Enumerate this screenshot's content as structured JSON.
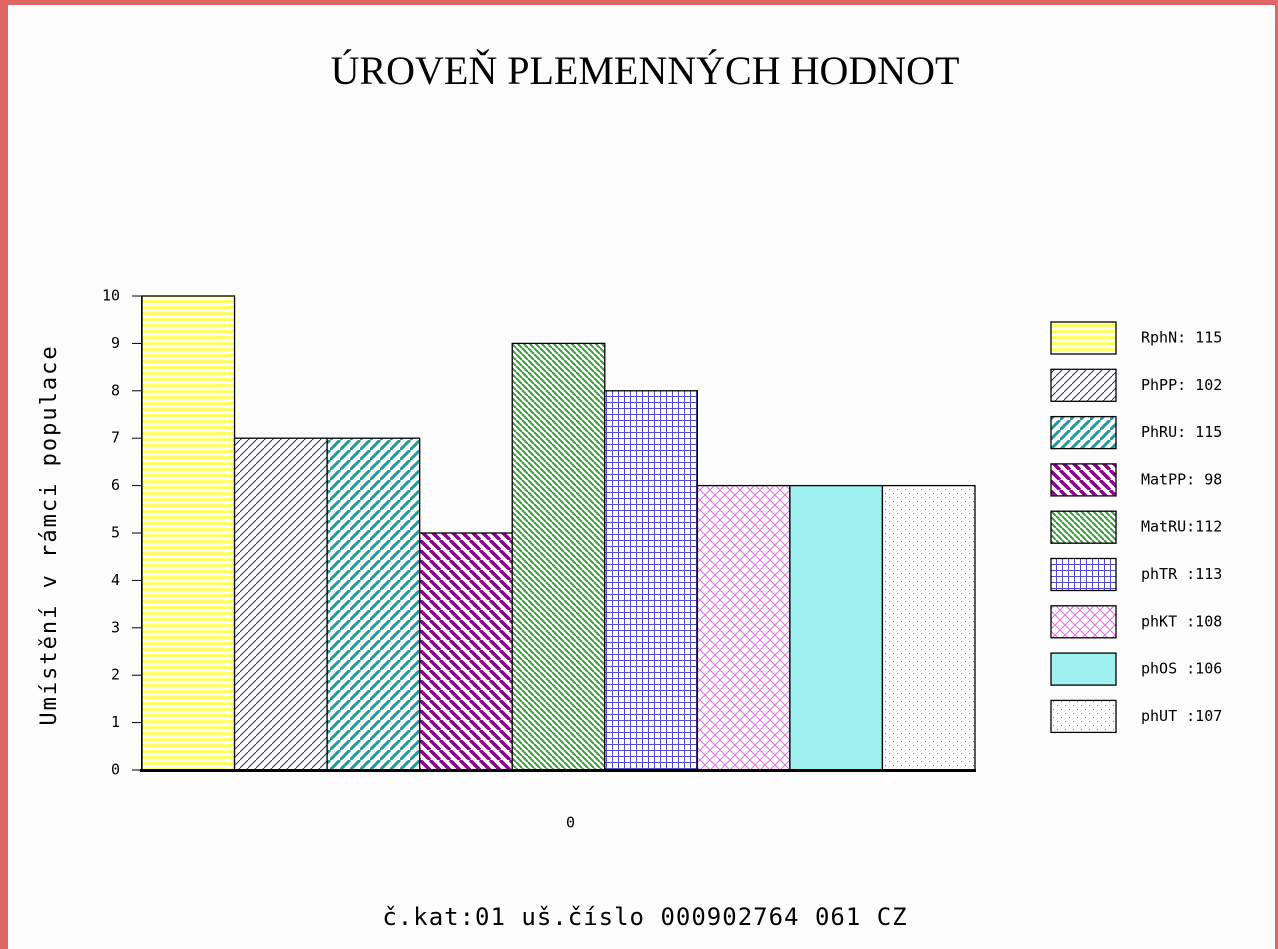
{
  "chart_data": {
    "type": "bar",
    "title": "ÚROVEŇ PLEMENNÝCH HODNOT",
    "y_label": "Umístění v rámci populace",
    "footer": "č.kat:01 uš.číslo 000902764 061 CZ",
    "categories": [
      "0"
    ],
    "ylim": [
      0,
      10
    ],
    "yticks": [
      0,
      1,
      2,
      3,
      4,
      5,
      6,
      7,
      8,
      9,
      10
    ],
    "series": [
      {
        "name": "RphN: 115",
        "color": "#ffff66",
        "pattern": "horizontal",
        "values": [
          10
        ]
      },
      {
        "name": "PhPP: 102",
        "color": "#303070",
        "pattern": "forward",
        "values": [
          7
        ]
      },
      {
        "name": "PhRU: 115",
        "color": "#209a9a",
        "pattern": "forward-thick",
        "values": [
          7
        ]
      },
      {
        "name": "MatPP: 98",
        "color": "#8a008a",
        "pattern": "backward-thick",
        "values": [
          5
        ]
      },
      {
        "name": "MatRU:112",
        "color": "#3a9a3a",
        "pattern": "backward",
        "values": [
          9
        ]
      },
      {
        "name": "phTR :113",
        "color": "#5050c0",
        "pattern": "grid",
        "values": [
          8
        ]
      },
      {
        "name": "phKT :108",
        "color": "#e070e0",
        "pattern": "crosshatch",
        "values": [
          6
        ]
      },
      {
        "name": "phOS :106",
        "color": "#9ff0f0",
        "pattern": "solid",
        "values": [
          6
        ]
      },
      {
        "name": "phUT :107",
        "color": "#a08050",
        "pattern": "dots",
        "values": [
          6
        ]
      }
    ]
  }
}
